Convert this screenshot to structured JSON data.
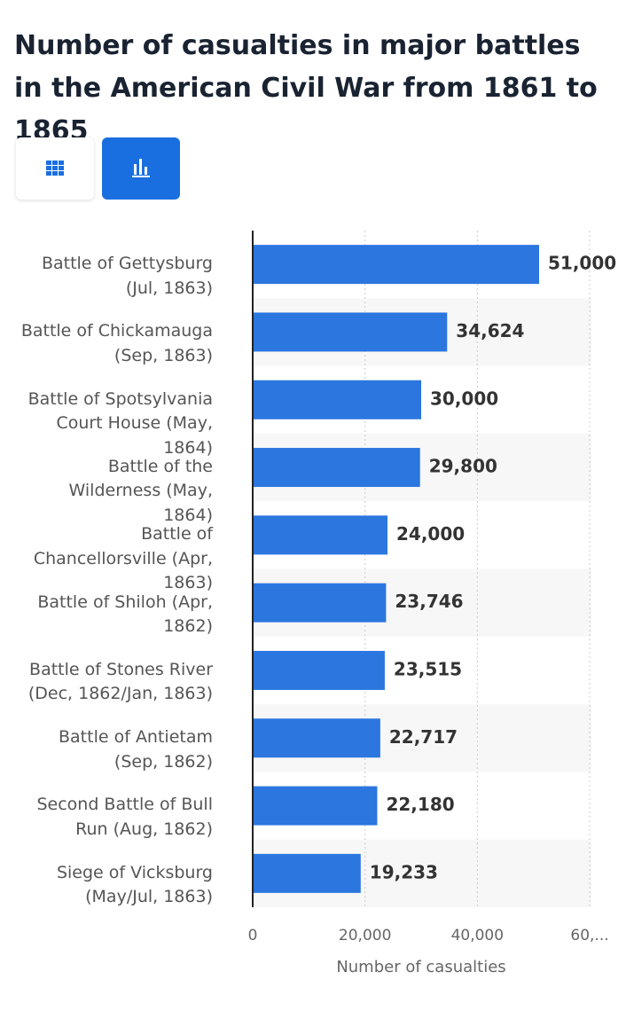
{
  "chart_data": {
    "type": "bar",
    "title": "Number of casualties in major battles in the American Civil War from 1861 to 1865",
    "xlabel": "Number of casualties",
    "categories": [
      "Battle of Gettysburg (Jul, 1863)",
      "Battle of Chickamauga (Sep, 1863)",
      "Battle of Spotsylvania Court House (May, 1864)",
      "Battle of the Wilderness (May, 1864)",
      "Battle of Chancellorsville (Apr, 1863)",
      "Battle of Shiloh (Apr, 1862)",
      "Battle of Stones River (Dec, 1862/Jan, 1863)",
      "Battle of Antietam (Sep, 1862)",
      "Second Battle of Bull Run (Aug, 1862)",
      "Siege of Vicksburg (May/Jul, 1863)"
    ],
    "values": [
      51000,
      34624,
      30000,
      29800,
      24000,
      23746,
      23515,
      22717,
      22180,
      19233
    ],
    "value_labels": [
      "51,000",
      "34,624",
      "30,000",
      "29,800",
      "24,000",
      "23,746",
      "23,515",
      "22,717",
      "22,180",
      "19,233"
    ],
    "color": "#2b76df",
    "xlim": [
      0,
      60000
    ],
    "xticks": [
      0,
      {
        "value": 20000,
        "label": "20,000"
      },
      {
        "value": 40000,
        "label": "40,000"
      },
      {
        "value": 60000,
        "label": "60,..."
      }
    ],
    "grid": true
  }
}
